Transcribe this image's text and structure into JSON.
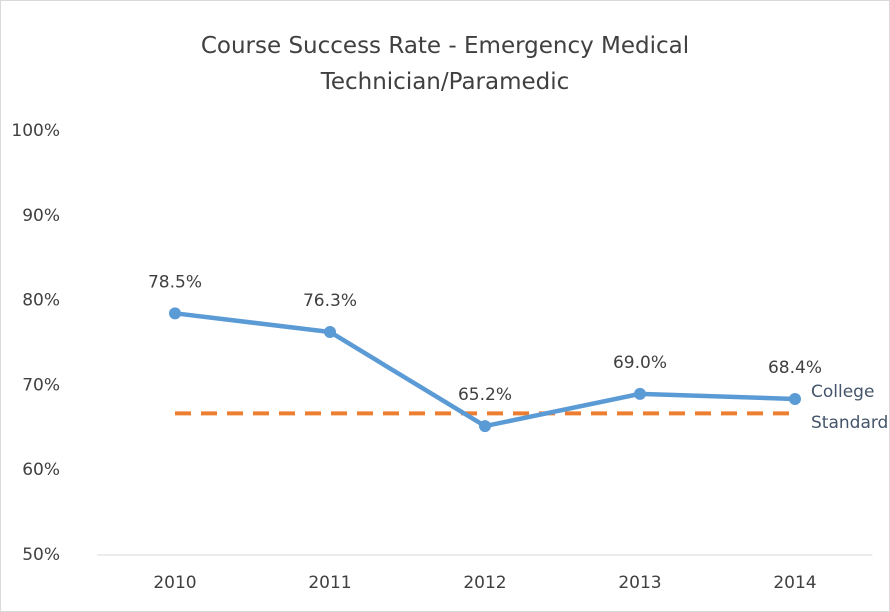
{
  "chart_data": {
    "type": "line",
    "title": "Course Success Rate - Emergency Medical Technician/Paramedic",
    "categories": [
      "2010",
      "2011",
      "2012",
      "2013",
      "2014"
    ],
    "series": [
      {
        "name": "Course Success Rate",
        "color": "#5b9bd5",
        "values": [
          78.5,
          76.3,
          65.2,
          69.0,
          68.4
        ],
        "value_labels": [
          "78.5%",
          "76.3%",
          "65.2%",
          "69.0%",
          "68.4%"
        ]
      },
      {
        "name": "College Standard",
        "color": "#ed7d31",
        "dashed": true,
        "values": [
          66.7,
          66.7,
          66.7,
          66.7,
          66.7
        ]
      }
    ],
    "ylim": [
      50,
      100
    ],
    "yticks": [
      {
        "value": 50,
        "label": "50%"
      },
      {
        "value": 60,
        "label": "60%"
      },
      {
        "value": 70,
        "label": "70%"
      },
      {
        "value": 80,
        "label": "80%"
      },
      {
        "value": 90,
        "label": "90%"
      },
      {
        "value": 100,
        "label": "100%"
      }
    ],
    "grid": false
  }
}
